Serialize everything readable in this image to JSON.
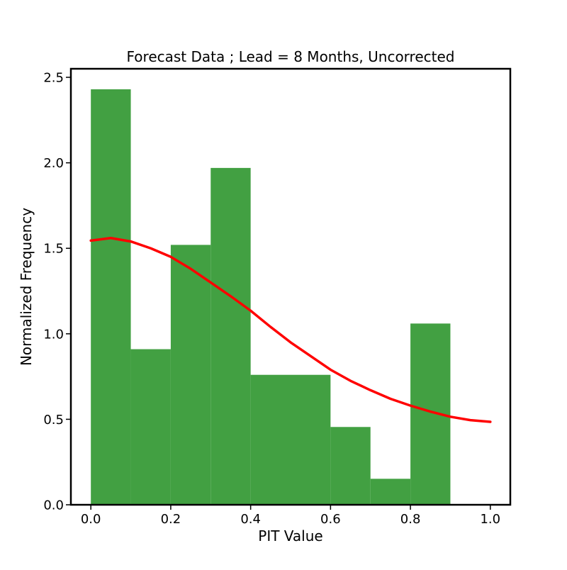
{
  "chart_data": {
    "type": "bar",
    "title": "Forecast Data ; Lead = 8 Months, Uncorrected",
    "xlabel": "PIT Value",
    "ylabel": "Normalized Frequency",
    "xlim": [
      -0.05,
      1.05
    ],
    "ylim": [
      0,
      2.55
    ],
    "xticks": [
      0.0,
      0.2,
      0.4,
      0.6,
      0.8,
      1.0
    ],
    "xtick_labels": [
      "0.0",
      "0.2",
      "0.4",
      "0.6",
      "0.8",
      "1.0"
    ],
    "yticks": [
      0.0,
      0.5,
      1.0,
      1.5,
      2.0,
      2.5
    ],
    "ytick_labels": [
      "0.0",
      "0.5",
      "1.0",
      "1.5",
      "2.0",
      "2.5"
    ],
    "grid": false,
    "legend": "none",
    "bins": [
      [
        0.0,
        0.1
      ],
      [
        0.1,
        0.2
      ],
      [
        0.2,
        0.3
      ],
      [
        0.3,
        0.4
      ],
      [
        0.4,
        0.5
      ],
      [
        0.5,
        0.6
      ],
      [
        0.6,
        0.7
      ],
      [
        0.7,
        0.8
      ],
      [
        0.8,
        0.9
      ]
    ],
    "values": [
      2.43,
      0.91,
      1.52,
      1.97,
      0.76,
      0.76,
      0.455,
      0.152,
      1.06
    ],
    "bar_color": "#42a042",
    "curve": {
      "color": "#ff0000",
      "x": [
        0.0,
        0.05,
        0.1,
        0.15,
        0.2,
        0.25,
        0.3,
        0.35,
        0.4,
        0.45,
        0.5,
        0.55,
        0.6,
        0.65,
        0.7,
        0.75,
        0.8,
        0.85,
        0.9,
        0.95,
        1.0
      ],
      "y": [
        1.545,
        1.56,
        1.54,
        1.5,
        1.45,
        1.38,
        1.3,
        1.22,
        1.135,
        1.04,
        0.95,
        0.87,
        0.79,
        0.725,
        0.67,
        0.62,
        0.58,
        0.545,
        0.515,
        0.495,
        0.485
      ]
    }
  }
}
